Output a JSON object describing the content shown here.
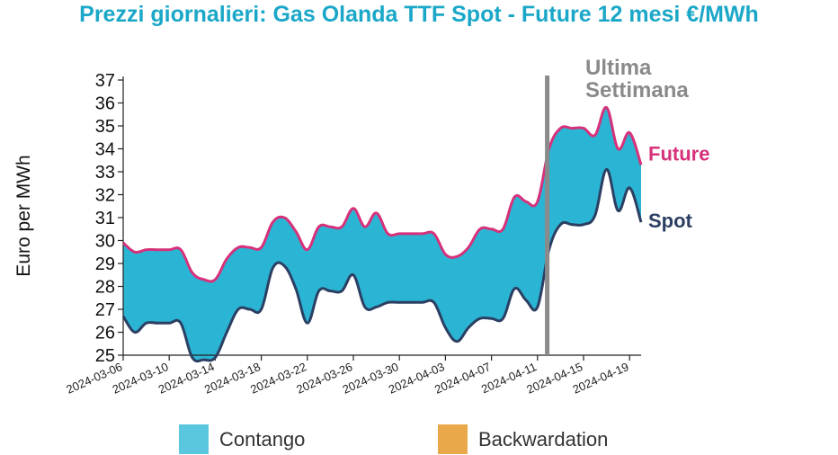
{
  "title": "Prezzi giornalieri: Gas Olanda TTF Spot - Future 12 mesi €/MWh",
  "colors": {
    "title": "#1aa7c8",
    "future": "#d6317a",
    "spot": "#2b3f63",
    "contango": "#2bb5d4",
    "contango_legend": "#5ac7de",
    "backwardation": "#e9a94b",
    "annotation": "#8a8a8a"
  },
  "annotation": {
    "line1": "Ultima",
    "line2": "Settimana",
    "date": "2024-04-12"
  },
  "legend": {
    "contango": "Contango",
    "backwardation": "Backwardation"
  },
  "chart_data": {
    "type": "area",
    "ylabel": "Euro per MWh",
    "ylim": [
      25,
      37
    ],
    "yticks": [
      25,
      26,
      27,
      28,
      29,
      30,
      31,
      32,
      33,
      34,
      35,
      36,
      37
    ],
    "xlim": [
      "2024-03-06",
      "2024-04-19"
    ],
    "xticks": [
      "2024-03-06",
      "2024-03-10",
      "2024-03-14",
      "2024-03-18",
      "2024-03-22",
      "2024-03-26",
      "2024-03-30",
      "2024-04-03",
      "2024-04-07",
      "2024-04-11",
      "2024-04-15",
      "2024-04-19"
    ],
    "series": [
      {
        "name": "Future",
        "points": [
          [
            "2024-03-06",
            29.9
          ],
          [
            "2024-03-07",
            29.5
          ],
          [
            "2024-03-08",
            29.6
          ],
          [
            "2024-03-09",
            29.6
          ],
          [
            "2024-03-10",
            29.6
          ],
          [
            "2024-03-11",
            29.6
          ],
          [
            "2024-03-12",
            28.6
          ],
          [
            "2024-03-13",
            28.3
          ],
          [
            "2024-03-14",
            28.3
          ],
          [
            "2024-03-15",
            29.2
          ],
          [
            "2024-03-16",
            29.7
          ],
          [
            "2024-03-17",
            29.7
          ],
          [
            "2024-03-18",
            29.7
          ],
          [
            "2024-03-19",
            30.8
          ],
          [
            "2024-03-20",
            31.0
          ],
          [
            "2024-03-21",
            30.4
          ],
          [
            "2024-03-22",
            29.6
          ],
          [
            "2024-03-23",
            30.6
          ],
          [
            "2024-03-24",
            30.6
          ],
          [
            "2024-03-25",
            30.6
          ],
          [
            "2024-03-26",
            31.4
          ],
          [
            "2024-03-27",
            30.6
          ],
          [
            "2024-03-28",
            31.2
          ],
          [
            "2024-03-29",
            30.3
          ],
          [
            "2024-03-30",
            30.3
          ],
          [
            "2024-03-31",
            30.3
          ],
          [
            "2024-04-01",
            30.3
          ],
          [
            "2024-04-02",
            30.3
          ],
          [
            "2024-04-03",
            29.4
          ],
          [
            "2024-04-04",
            29.3
          ],
          [
            "2024-04-05",
            29.7
          ],
          [
            "2024-04-06",
            30.5
          ],
          [
            "2024-04-07",
            30.5
          ],
          [
            "2024-04-08",
            30.5
          ],
          [
            "2024-04-09",
            31.9
          ],
          [
            "2024-04-10",
            31.7
          ],
          [
            "2024-04-11",
            31.7
          ],
          [
            "2024-04-12",
            34.0
          ],
          [
            "2024-04-13",
            34.9
          ],
          [
            "2024-04-14",
            34.9
          ],
          [
            "2024-04-15",
            34.9
          ],
          [
            "2024-04-16",
            34.6
          ],
          [
            "2024-04-17",
            35.8
          ],
          [
            "2024-04-18",
            34.0
          ],
          [
            "2024-04-19",
            34.7
          ],
          [
            "2024-04-20",
            33.3
          ]
        ]
      },
      {
        "name": "Spot",
        "points": [
          [
            "2024-03-06",
            26.7
          ],
          [
            "2024-03-07",
            26.0
          ],
          [
            "2024-03-08",
            26.4
          ],
          [
            "2024-03-09",
            26.4
          ],
          [
            "2024-03-10",
            26.4
          ],
          [
            "2024-03-11",
            26.4
          ],
          [
            "2024-03-12",
            24.9
          ],
          [
            "2024-03-13",
            24.8
          ],
          [
            "2024-03-14",
            24.9
          ],
          [
            "2024-03-15",
            26.0
          ],
          [
            "2024-03-16",
            27.0
          ],
          [
            "2024-03-17",
            27.0
          ],
          [
            "2024-03-18",
            27.0
          ],
          [
            "2024-03-19",
            28.8
          ],
          [
            "2024-03-20",
            28.9
          ],
          [
            "2024-03-21",
            27.9
          ],
          [
            "2024-03-22",
            26.4
          ],
          [
            "2024-03-23",
            27.8
          ],
          [
            "2024-03-24",
            27.8
          ],
          [
            "2024-03-25",
            27.8
          ],
          [
            "2024-03-26",
            28.5
          ],
          [
            "2024-03-27",
            27.1
          ],
          [
            "2024-03-28",
            27.1
          ],
          [
            "2024-03-29",
            27.3
          ],
          [
            "2024-03-30",
            27.3
          ],
          [
            "2024-03-31",
            27.3
          ],
          [
            "2024-04-01",
            27.3
          ],
          [
            "2024-04-02",
            27.3
          ],
          [
            "2024-04-03",
            26.2
          ],
          [
            "2024-04-04",
            25.6
          ],
          [
            "2024-04-05",
            26.2
          ],
          [
            "2024-04-06",
            26.6
          ],
          [
            "2024-04-07",
            26.6
          ],
          [
            "2024-04-08",
            26.6
          ],
          [
            "2024-04-09",
            27.9
          ],
          [
            "2024-04-10",
            27.4
          ],
          [
            "2024-04-11",
            27.1
          ],
          [
            "2024-04-12",
            29.6
          ],
          [
            "2024-04-13",
            30.7
          ],
          [
            "2024-04-14",
            30.7
          ],
          [
            "2024-04-15",
            30.7
          ],
          [
            "2024-04-16",
            31.1
          ],
          [
            "2024-04-17",
            33.1
          ],
          [
            "2024-04-18",
            31.3
          ],
          [
            "2024-04-19",
            32.3
          ],
          [
            "2024-04-20",
            30.8
          ]
        ]
      }
    ],
    "fill_between": "Contango",
    "grid": false
  }
}
